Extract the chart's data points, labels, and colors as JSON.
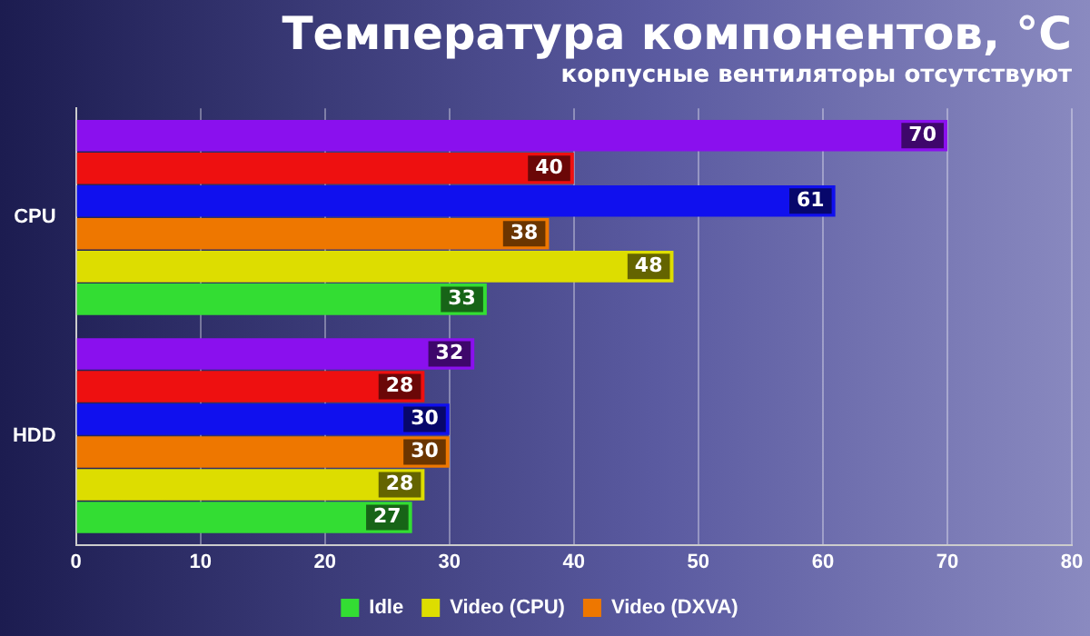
{
  "chart_data": {
    "type": "bar",
    "orientation": "horizontal",
    "title": "Температура компонентов, °C",
    "subtitle": "корпусные вентиляторы отсутствуют",
    "categories": [
      "CPU",
      "HDD"
    ],
    "series": [
      {
        "name": "Idle",
        "color": "#33dd33",
        "values": [
          33,
          27
        ]
      },
      {
        "name": "Video (CPU)",
        "color": "#dddd00",
        "values": [
          48,
          28
        ]
      },
      {
        "name": "Video (DXVA)",
        "color": "#ee7700",
        "values": [
          38,
          30
        ]
      },
      {
        "color": "#1010ee",
        "values": [
          61,
          30
        ]
      },
      {
        "color": "#ee1010",
        "values": [
          40,
          28
        ]
      },
      {
        "color": "#8a10ee",
        "values": [
          70,
          32
        ]
      }
    ],
    "xlim": [
      0,
      80
    ],
    "xticks": [
      0,
      10,
      20,
      30,
      40,
      50,
      60,
      70,
      80
    ],
    "grid": "x",
    "legend": "bottom",
    "data_labels": true
  }
}
